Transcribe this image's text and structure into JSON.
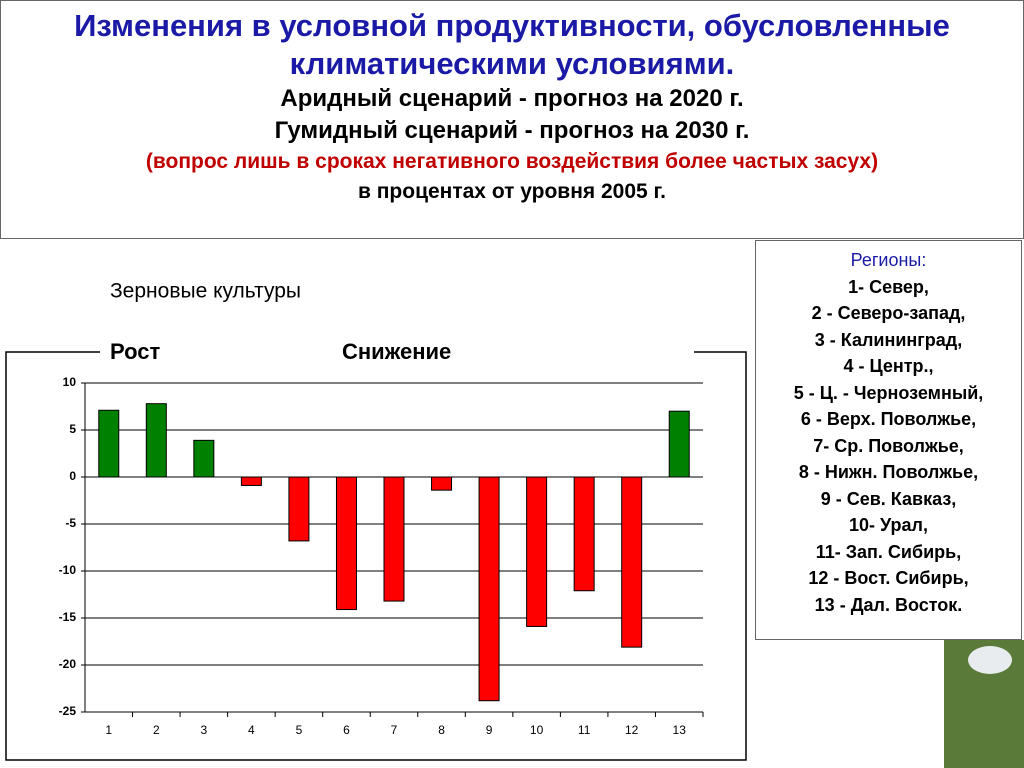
{
  "header": {
    "title": "Изменения в условной продуктивности, обусловленные климатическими условиями.",
    "lines": [
      "Аридный сценарий - прогноз на 2020 г.",
      "Гумидный сценарий - прогноз на 2030 г."
    ],
    "note": "(вопрос лишь в сроках негативного воздействия более частых засух)",
    "units": "в процентах от уровня 2005 г."
  },
  "regions": {
    "title": "Регионы:",
    "items": [
      "1- Север,",
      "2 - Северо-запад,",
      "3 - Калининград,",
      "4 - Центр.,",
      "5 - Ц. - Черноземный,",
      "6 - Верх. Поволжье,",
      "7- Ср. Поволжье,",
      "8 - Нижн. Поволжье,",
      "9 - Сев. Кавказ,",
      "10- Урал,",
      "11- Зап. Сибирь,",
      "12 - Вост. Сибирь,",
      "13 - Дал. Восток."
    ]
  },
  "chart_data": {
    "type": "bar",
    "title": "Зерновые культуры",
    "annotations": [
      "Рост",
      "Снижение"
    ],
    "categories": [
      "1",
      "2",
      "3",
      "4",
      "5",
      "6",
      "7",
      "8",
      "9",
      "10",
      "11",
      "12",
      "13"
    ],
    "values": [
      7.1,
      7.8,
      3.9,
      -0.9,
      -6.8,
      -14.1,
      -13.2,
      -1.4,
      -23.8,
      -15.9,
      -12.1,
      -18.1,
      7.0
    ],
    "colors": [
      "#008000",
      "#008000",
      "#008000",
      "#ff0000",
      "#ff0000",
      "#ff0000",
      "#ff0000",
      "#ff0000",
      "#ff0000",
      "#ff0000",
      "#ff0000",
      "#ff0000",
      "#008000"
    ],
    "ylim": [
      -25,
      10
    ],
    "yticks": [
      -25,
      -20,
      -15,
      -10,
      -5,
      0,
      5,
      10
    ],
    "grid": true
  }
}
